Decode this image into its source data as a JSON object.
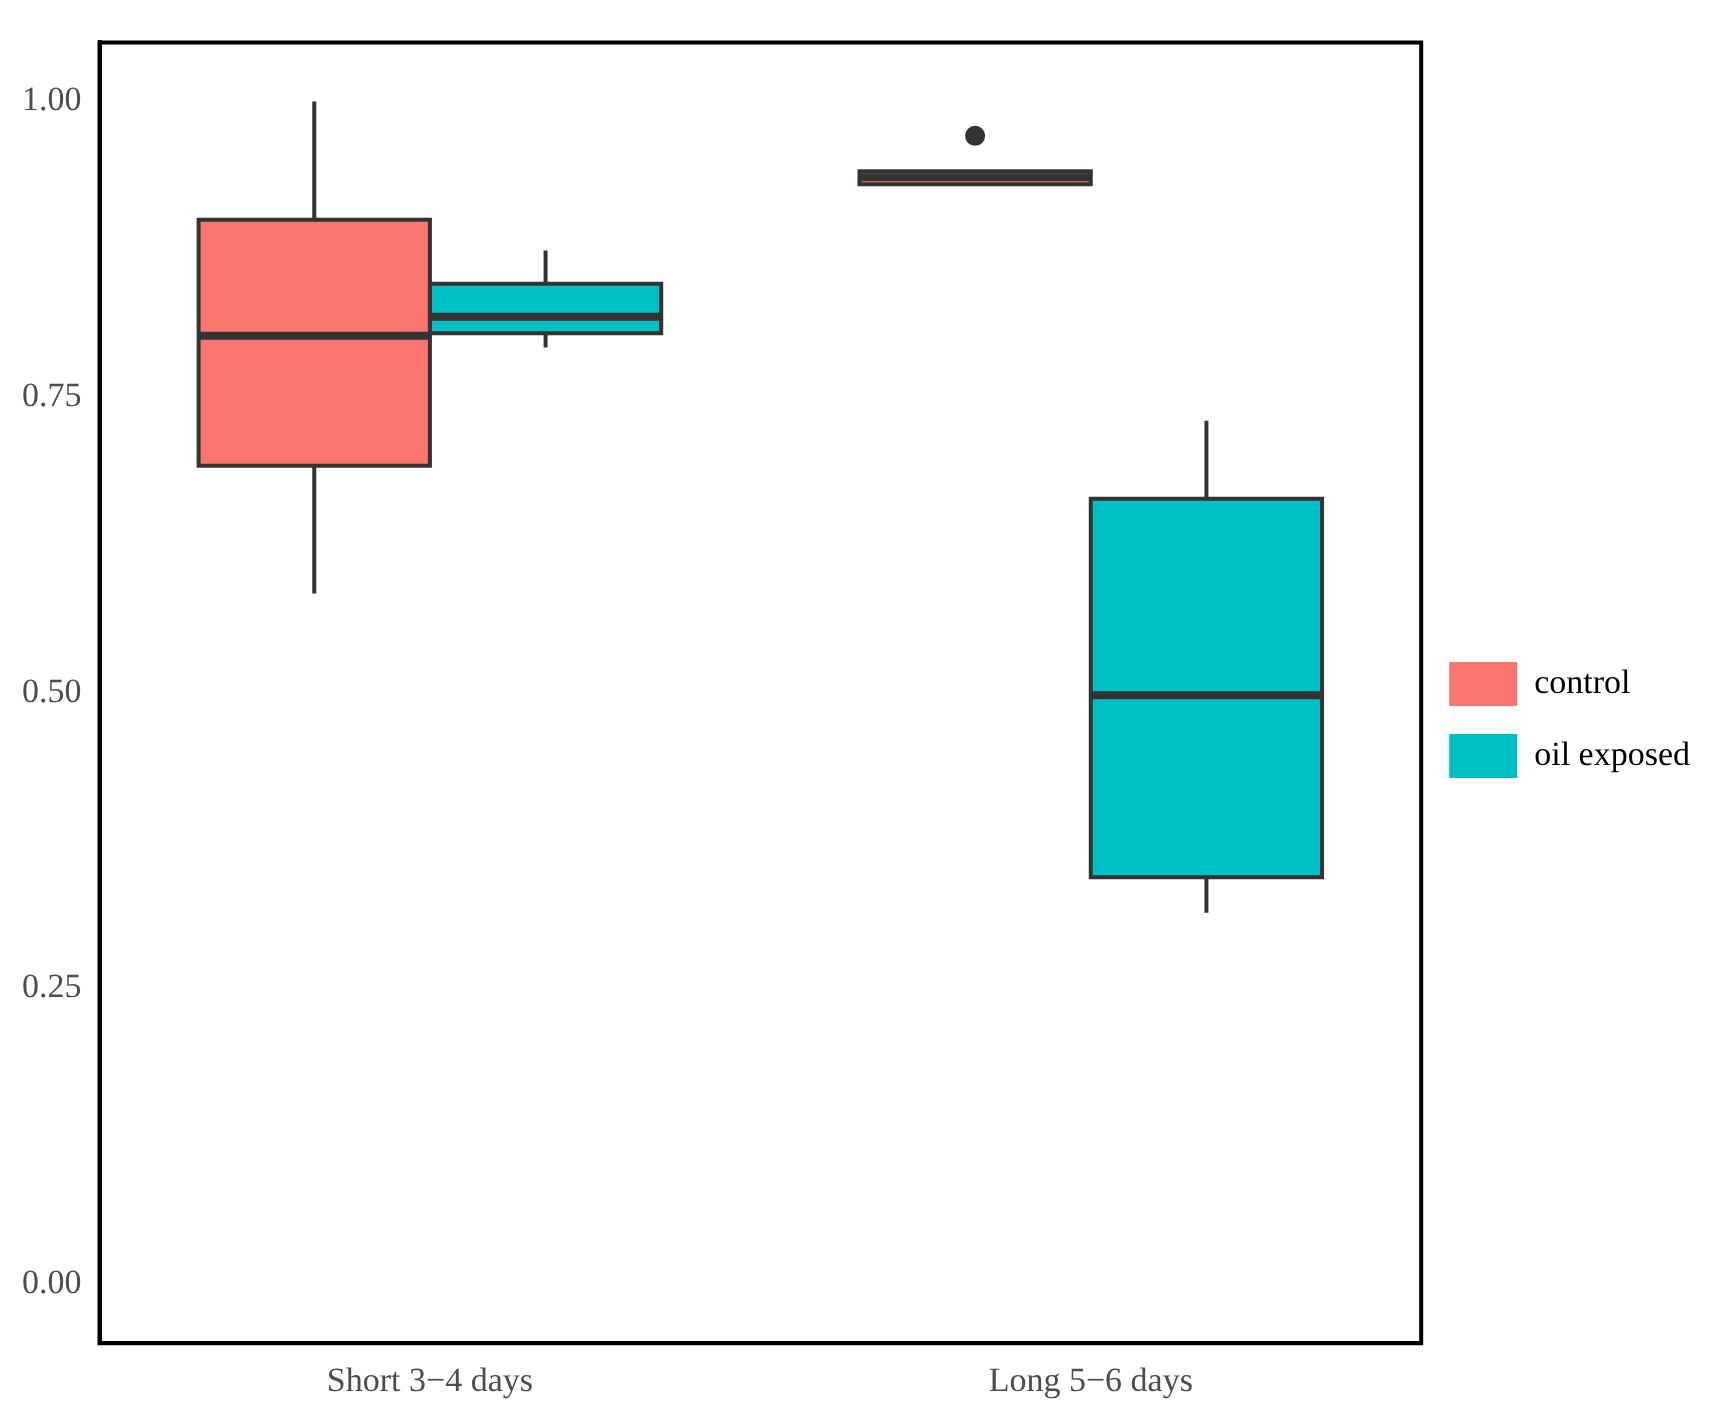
{
  "chart_data": {
    "type": "box",
    "categories": [
      "Short 3−4 days",
      "Long 5−6 days"
    ],
    "series": [
      {
        "name": "control",
        "color": "#f8766d",
        "boxes": [
          {
            "low": 0.584,
            "q1": 0.692,
            "median": 0.802,
            "q3": 0.9,
            "high": 1.0
          },
          {
            "low": 0.93,
            "q1": 0.93,
            "median": 0.936,
            "q3": 0.941,
            "high": 0.941,
            "outliers": [
              0.971
            ]
          }
        ]
      },
      {
        "name": "oil exposed",
        "color": "#00bfc4",
        "boxes": [
          {
            "low": 0.792,
            "q1": 0.804,
            "median": 0.818,
            "q3": 0.846,
            "high": 0.874
          },
          {
            "low": 0.314,
            "q1": 0.344,
            "median": 0.498,
            "q3": 0.664,
            "high": 0.73
          }
        ]
      }
    ],
    "ylim": [
      -0.05,
      1.05
    ],
    "yticks": [
      {
        "value": 0,
        "label": "0.00"
      },
      {
        "value": 0.25,
        "label": "0.25"
      },
      {
        "value": 0.5,
        "label": "0.50"
      },
      {
        "value": 0.75,
        "label": "0.75"
      },
      {
        "value": 1,
        "label": "1.00"
      }
    ],
    "legend": "right"
  }
}
